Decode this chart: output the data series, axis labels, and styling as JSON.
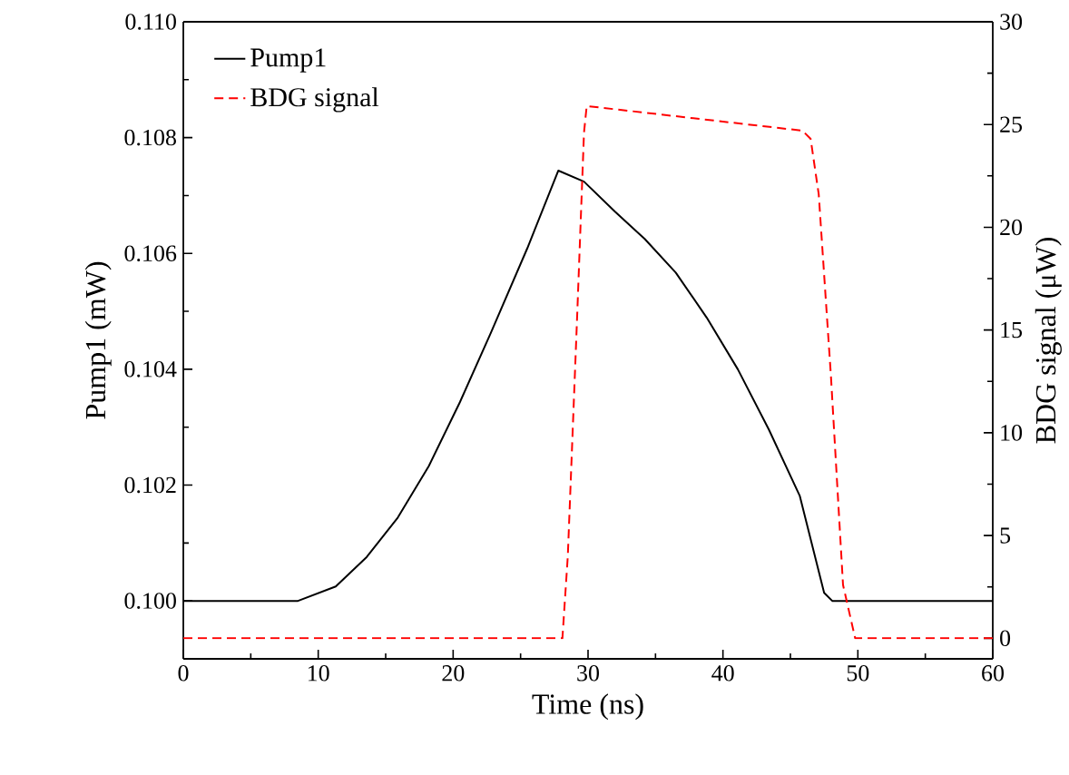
{
  "chart_data": {
    "type": "line",
    "xlabel": "Time (ns)",
    "ylabel": "Pump1 (mW)",
    "y2label": "BDG signal (μW)",
    "xlim": [
      0,
      60
    ],
    "xticks": [
      0,
      10,
      20,
      30,
      40,
      50,
      60
    ],
    "ylim": [
      0.099,
      0.11
    ],
    "yticks": [
      {
        "value": 0.1,
        "label": "0.100"
      },
      {
        "value": 0.102,
        "label": "0.102"
      },
      {
        "value": 0.104,
        "label": "0.104"
      },
      {
        "value": 0.106,
        "label": "0.106"
      },
      {
        "value": 0.108,
        "label": "0.108"
      },
      {
        "value": 0.11,
        "label": "0.110"
      }
    ],
    "y2lim": [
      -1,
      30
    ],
    "y2ticks": [
      0,
      5,
      10,
      15,
      20,
      25,
      30
    ],
    "legend": "top left",
    "series": [
      {
        "name": "Pump1",
        "color": "#000000",
        "line_style": "solid",
        "x": [
          0,
          8.5,
          11.3,
          13.6,
          15.9,
          18.2,
          20.5,
          22.8,
          25.5,
          27.8,
          29.7,
          32.0,
          34.2,
          36.5,
          38.8,
          41.1,
          43.4,
          45.7,
          47.5,
          48.1,
          60
        ],
        "values": [
          0.1,
          0.1,
          0.10025,
          0.10076,
          0.10144,
          0.10233,
          0.10343,
          0.10463,
          0.10609,
          0.10743,
          0.10724,
          0.10672,
          0.10625,
          0.10567,
          0.10489,
          0.104,
          0.10296,
          0.10181,
          0.10014,
          0.1,
          0.1
        ]
      },
      {
        "name": "BDG signal",
        "color": "#ff0000",
        "line_style": "dashed",
        "axis": "y2",
        "x": [
          0,
          28.1,
          28.5,
          29.2,
          29.7,
          29.9,
          45.9,
          46.5,
          47.1,
          48.0,
          48.9,
          49.8,
          60
        ],
        "values": [
          0,
          0,
          4.0,
          15.8,
          24.6,
          25.9,
          24.7,
          24.3,
          21.6,
          12.8,
          2.6,
          0,
          0
        ]
      }
    ]
  }
}
